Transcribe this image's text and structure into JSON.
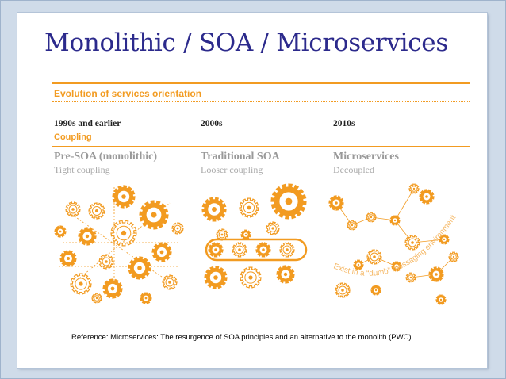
{
  "slide": {
    "title": "Monolithic / SOA / Microservices",
    "section_title": "Evolution of services orientation",
    "coupling_label": "Coupling",
    "columns": [
      {
        "era": "1990s and earlier",
        "name": "Pre-SOA (monolithic)",
        "coupling": "Tight coupling"
      },
      {
        "era": "2000s",
        "name": "Traditional SOA",
        "coupling": "Looser coupling"
      },
      {
        "era": "2010s",
        "name": "Microservices",
        "coupling": "Decoupled"
      }
    ],
    "microservices_arc_text": "Exist in a “dumb” messaging environment",
    "reference": "Reference: Microservices: The resurgence of SOA principles and an alternative to the monolith (PWC)"
  },
  "colors": {
    "orange": "#f29b21",
    "title_blue": "#2c2a8c",
    "frame_blue": "#cfdbe9"
  }
}
